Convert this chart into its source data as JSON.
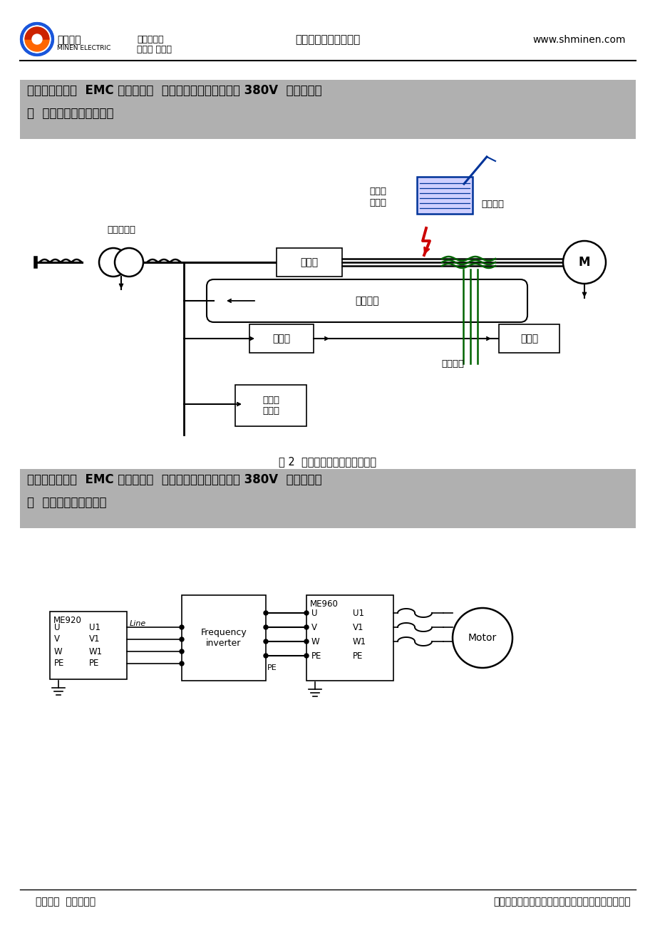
{
  "page_bg": "#ffffff",
  "section1_bg": "#b0b0b0",
  "section2_bg": "#b0b0b0",
  "section1_line1": "五、云南滤波器  EMC 输入滤波器  变频器专滤波器三相三线 380V  民恩厂家直",
  "section1_line2": "销  变频器干扰范围图示。",
  "section2_line1": "六、云南滤波器  EMC 输入滤波器  变频器专滤波器三相三线 380V  民恩厂家直",
  "section2_line2": "销  滤波器安装接线图。",
  "fig1_caption": "图 2  变频器输出侧谐波干扰途径",
  "header_center": "变频器专用滤波器系列",
  "header_right": "www.shminen.com",
  "header_sub1": "专业供应商",
  "header_sub2": "电抗器 滤波器",
  "footer_left": "民恩制造  扬民族品牌",
  "footer_right": "如有需要请您联系《上海民恩电气有限公司》咨询！",
  "label_transformer": "电源变压器",
  "label_vfd": "变频器",
  "label_conduction": "传导干扰",
  "label_amp": "放大器",
  "label_other": "其他电\n子电路",
  "label_sensor": "传感器",
  "label_radio1": "无线电",
  "label_radio2": "接收机",
  "label_radiation": "辐射干扰",
  "label_induction": "感应干扰",
  "black": "#000000",
  "green": "#006400",
  "red": "#CC0000",
  "blue_dark": "#003399",
  "blue_box": "#c8c8ff"
}
